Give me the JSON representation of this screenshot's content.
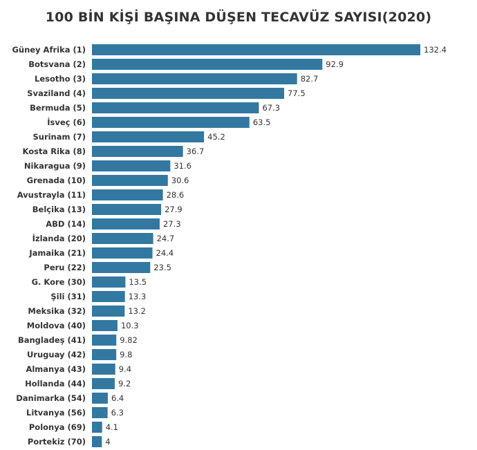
{
  "chart_data": {
    "type": "bar",
    "orientation": "horizontal",
    "title": "100 BİN KİŞİ BAŞINA DÜŞEN TECAVÜZ SAYISI(2020)",
    "xlabel": "",
    "ylabel": "",
    "grid": false,
    "bar_color": "#3278a1",
    "categories": [
      "Güney Afrika (1)",
      "Botsvana (2)",
      "Lesotho (3)",
      "Svaziland (4)",
      "Bermuda (5)",
      "İsveç (6)",
      "Surinam (7)",
      "Kosta Rika (8)",
      "Nikaragua (9)",
      "Grenada (10)",
      "Avustrayla (11)",
      "Belçika (13)",
      "ABD (14)",
      "İzlanda (20)",
      "Jamaika (21)",
      "Peru (22)",
      "G. Kore (30)",
      "Şili (31)",
      "Meksika (32)",
      "Moldova (40)",
      "Bangladeş (41)",
      "Uruguay (42)",
      "Almanya (43)",
      "Hollanda (44)",
      "Danimarka (54)",
      "Litvanya (56)",
      "Polonya (69)",
      "Portekiz (70)"
    ],
    "values": [
      132.4,
      92.9,
      82.7,
      77.5,
      67.3,
      63.5,
      45.2,
      36.7,
      31.6,
      30.6,
      28.6,
      27.9,
      27.3,
      24.7,
      24.4,
      23.5,
      13.5,
      13.3,
      13.2,
      10.3,
      9.82,
      9.8,
      9.4,
      9.2,
      6.4,
      6.3,
      4.1,
      4
    ],
    "value_labels": [
      "132.4",
      "92.9",
      "82.7",
      "77.5",
      "67.3",
      "63.5",
      "45.2",
      "36.7",
      "31.6",
      "30.6",
      "28.6",
      "27.9",
      "27.3",
      "24.7",
      "24.4",
      "23.5",
      "13.5",
      "13.3",
      "13.2",
      "10.3",
      "9.82",
      "9.8",
      "9.4",
      "9.2",
      "6.4",
      "6.3",
      "4.1",
      "4"
    ]
  }
}
